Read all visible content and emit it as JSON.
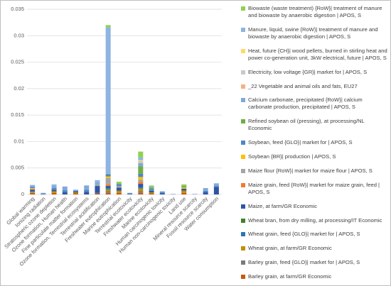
{
  "chart_data": {
    "type": "stacked_bar",
    "categories": [
      "Global warming",
      "Ionizing radiation",
      "Stratospheric ozone depletion",
      "Ozone formation, Human health",
      "Fine particulate matter formation",
      "Ozone formation, Terrestrial ecosystems",
      "Terrestrial acidification",
      "Freshwater eutrophication",
      "Marine eutrophication",
      "Terrestrial ecotoxicity",
      "Freshwater ecotoxicity",
      "Marine ecotoxicity",
      "Human carcinogenic toxicity",
      "Human non-carcinogenic toxicity",
      "Land use",
      "Mineral resource scarcity",
      "Fossil resource scarcity",
      "Water consumption"
    ],
    "ylim": [
      0,
      0.035
    ],
    "yticks": [
      0,
      0.005,
      0.01,
      0.015,
      0.02,
      0.025,
      0.03,
      0.035
    ],
    "grid": true,
    "series": [
      {
        "name": "Biowaste (waste treatment) {RoW}| treatment of manure and biowaste by anaerobic digestion | APOS, S",
        "color": "#8fd150",
        "values": [
          0,
          0,
          0,
          0,
          0,
          0,
          0,
          0.0004,
          0.0003,
          0,
          0.0011,
          0.0002,
          0,
          0,
          0.0003,
          0,
          0,
          0
        ]
      },
      {
        "name": "Manure, liquid, swine {RoW}| treatment of manure and biowaste by anaerobic digestion | APOS, S",
        "color": "#8db4e2",
        "values": [
          0.0002,
          0,
          0.0003,
          0,
          0,
          0,
          0.0004,
          0.0276,
          0,
          0,
          0.0005,
          0,
          0,
          0,
          0,
          0,
          0,
          0
        ]
      },
      {
        "name": "Heat, future {CH}| wood pellets, burned in stirling heat and power co-generation unit, 3kW electrical, future | APOS, S",
        "color": "#ffd966",
        "values": [
          0,
          0,
          0,
          0,
          0,
          0,
          0,
          0,
          0,
          0,
          0.0002,
          0,
          0,
          0,
          0,
          0,
          0,
          0
        ]
      },
      {
        "name": "Electricity, low voltage {GR}| market for | APOS, S",
        "color": "#c9c9c9",
        "values": [
          0,
          0,
          0,
          0,
          0,
          0,
          0,
          0,
          0,
          0,
          0.0004,
          0,
          0,
          0,
          0,
          0,
          0,
          0
        ]
      },
      {
        "name": "_22 Vegetable and animal oils and fats, EU27",
        "color": "#f4b183",
        "values": [
          0,
          0,
          0,
          0,
          0,
          0,
          0,
          0,
          0,
          0,
          0,
          0,
          0,
          0,
          0,
          0,
          0,
          0
        ]
      },
      {
        "name": "Calcium carbonate, precipitated {RoW}| calcium carbonate production, precipitated | APOS, S",
        "color": "#7fa9d9",
        "values": [
          0.0002,
          0.0002,
          0.0004,
          0.0007,
          0.0003,
          0.0008,
          0.0004,
          0.0001,
          0,
          0.0001,
          0.0006,
          0.0002,
          0.0002,
          0.0001,
          0,
          0.0001,
          0.0005,
          0.0005
        ]
      },
      {
        "name": "Refined soybean oil (pressing), at processing/NL Economic",
        "color": "#70ad47",
        "values": [
          0,
          0,
          0,
          0,
          0,
          0,
          0,
          0.0001,
          0.0002,
          0,
          0.0014,
          0.0003,
          0,
          0,
          0.0003,
          0,
          0,
          0
        ]
      },
      {
        "name": "Soybean, feed {GLO}| market for | APOS, S",
        "color": "#4f86c6",
        "values": [
          0.0002,
          0,
          0.0003,
          0.0004,
          0,
          0.0004,
          0,
          0.0004,
          0.0003,
          0.0001,
          0.0006,
          0.0003,
          0.0002,
          0,
          0,
          0,
          0.0003,
          0.0002
        ]
      },
      {
        "name": "Soybean {BR}| production | APOS, S",
        "color": "#ffc000",
        "values": [
          0.0001,
          0,
          0,
          0,
          0,
          0,
          0,
          0.0003,
          0,
          0,
          0.0005,
          0,
          0,
          0,
          0.0002,
          0,
          0,
          0
        ]
      },
      {
        "name": "Maize flour {RoW}| market for maize flour | APOS, S",
        "color": "#a5a5a5",
        "values": [
          0.0001,
          0,
          0,
          0,
          0,
          0,
          0.0003,
          0.0012,
          0.0003,
          0,
          0.0004,
          0,
          0,
          0,
          0,
          0,
          0,
          0
        ]
      },
      {
        "name": "Maize grain, feed {RoW}| market for maize grain, feed | APOS, S",
        "color": "#ed7d31",
        "values": [
          0.0001,
          0,
          0,
          0,
          0,
          0,
          0,
          0.0003,
          0,
          0,
          0.0004,
          0,
          0,
          0,
          0,
          0,
          0,
          0
        ]
      },
      {
        "name": "Maize, at farm/GR Economic",
        "color": "#2f55a4",
        "values": [
          0.0003,
          0.0001,
          0.0003,
          0.0004,
          0.0002,
          0.0005,
          0.0013,
          0.0004,
          0.0006,
          0.0001,
          0.0006,
          0.0003,
          0.0002,
          0,
          0.0004,
          0,
          0.0004,
          0.0014
        ]
      },
      {
        "name": "Wheat bran, from dry milling, at processing/IT Economic",
        "color": "#43802b",
        "values": [
          0,
          0,
          0,
          0,
          0,
          0,
          0,
          0.0001,
          0,
          0,
          0,
          0,
          0,
          0,
          0,
          0,
          0,
          0
        ]
      },
      {
        "name": "Wheat grain, feed {GLO}| market for | APOS, S",
        "color": "#2e75b6",
        "values": [
          0.0001,
          0,
          0,
          0,
          0,
          0,
          0.0001,
          0.0002,
          0,
          0,
          0.0003,
          0,
          0,
          0,
          0,
          0,
          0,
          0
        ]
      },
      {
        "name": "Wheat grain, at farm/GR Economic",
        "color": "#bf9000",
        "values": [
          0.0002,
          0,
          0.0003,
          0,
          0.0002,
          0,
          0,
          0.0003,
          0.0004,
          0,
          0.0005,
          0.0002,
          0,
          0,
          0.0004,
          0,
          0,
          0
        ]
      },
      {
        "name": "Barley grain, feed {GLO}| market for | APOS, S",
        "color": "#7b7b7b",
        "values": [
          0.0001,
          0,
          0,
          0,
          0,
          0,
          0,
          0.0003,
          0,
          0,
          0.0003,
          0,
          0,
          0,
          0,
          0,
          0,
          0
        ]
      },
      {
        "name": "Barley grain, at farm/GR Economic",
        "color": "#c55a11",
        "values": [
          0.0002,
          0,
          0.0003,
          0,
          0.0002,
          0,
          0.0002,
          0.0003,
          0.0003,
          0,
          0.0003,
          0.0002,
          0,
          0,
          0.0003,
          0,
          0,
          0
        ]
      }
    ]
  }
}
